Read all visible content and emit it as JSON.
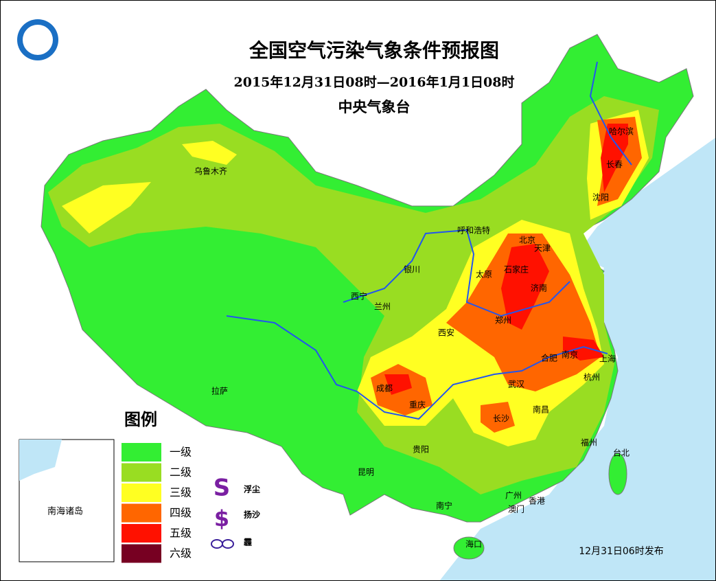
{
  "header": {
    "title": "全国空气污染气象条件预报图",
    "period": "2015年12月31日08时—2016年1月1日08时",
    "issuer": "中央气象台"
  },
  "legend": {
    "title": "图例",
    "levels": [
      {
        "label": "一级",
        "color": "#33ee33"
      },
      {
        "label": "二级",
        "color": "#99dd22"
      },
      {
        "label": "三级",
        "color": "#ffff22"
      },
      {
        "label": "四级",
        "color": "#ff6600"
      },
      {
        "label": "五级",
        "color": "#ff1100"
      },
      {
        "label": "六级",
        "color": "#770022"
      }
    ],
    "symbols": [
      {
        "label": "浮尘"
      },
      {
        "label": "扬沙"
      },
      {
        "label": "霾"
      }
    ]
  },
  "cities": [
    "乌鲁木齐",
    "哈尔滨",
    "长春",
    "沈阳",
    "呼和浩特",
    "北京",
    "天津",
    "石家庄",
    "太原",
    "济南",
    "银川",
    "西宁",
    "兰州",
    "郑州",
    "西安",
    "合肥",
    "南京",
    "上海",
    "杭州",
    "成都",
    "重庆",
    "武汉",
    "长沙",
    "南昌",
    "拉萨",
    "福州",
    "台北",
    "贵阳",
    "昆明",
    "南宁",
    "广州",
    "香港",
    "澳门",
    "海口"
  ],
  "inset": {
    "label": "南海诸岛"
  },
  "footer": {
    "issued": "12月31日06时发布"
  }
}
